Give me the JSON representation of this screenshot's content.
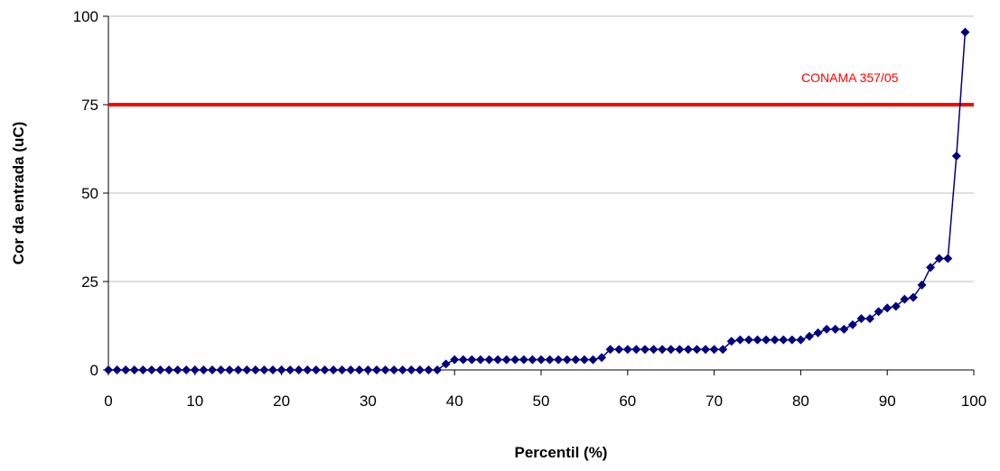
{
  "chart_data": {
    "type": "line",
    "title": "",
    "xlabel": "Percentil (%)",
    "ylabel": "Cor da entrada (uC)",
    "xlim": [
      0,
      100
    ],
    "ylim": [
      0,
      100
    ],
    "x_ticks": [
      "0",
      "10",
      "20",
      "30",
      "40",
      "50",
      "60",
      "70",
      "80",
      "90",
      "100"
    ],
    "y_ticks": [
      "0",
      "25",
      "50",
      "75",
      "100"
    ],
    "grid": "horizontal",
    "series_color": "#000080",
    "series": [
      {
        "x": [
          0,
          1,
          2,
          3,
          4,
          5,
          6,
          7,
          8,
          9,
          10,
          11,
          12,
          13,
          14,
          15,
          16,
          17,
          18,
          19,
          20,
          21,
          22,
          23,
          24,
          25,
          26,
          27,
          28,
          29,
          30,
          31,
          32,
          33,
          34,
          35,
          36,
          37,
          38,
          39,
          40,
          41,
          42,
          43,
          44,
          45,
          46,
          47,
          48,
          49,
          50,
          51,
          52,
          53,
          54,
          55,
          56,
          57,
          58,
          59,
          60,
          61,
          62,
          63,
          64,
          65,
          66,
          67,
          68,
          69,
          70,
          71,
          72,
          73,
          74,
          75,
          76,
          77,
          78,
          79,
          80,
          81,
          82,
          83,
          84,
          85,
          86,
          87,
          88,
          89,
          90,
          91,
          92,
          93,
          94,
          95,
          96,
          97,
          98,
          99
        ],
        "values": [
          0,
          0,
          0,
          0,
          0,
          0,
          0,
          0,
          0,
          0,
          0,
          0,
          0,
          0,
          0,
          0,
          0,
          0,
          0,
          0,
          0,
          0,
          0,
          0,
          0,
          0,
          0,
          0,
          0,
          0,
          0,
          0,
          0,
          0,
          0,
          0,
          0,
          0,
          0,
          1.7,
          2.9,
          2.9,
          2.9,
          2.9,
          2.9,
          2.9,
          2.9,
          2.9,
          2.9,
          2.9,
          2.9,
          2.9,
          2.9,
          2.9,
          2.9,
          2.9,
          2.9,
          3.5,
          5.8,
          5.8,
          5.8,
          5.8,
          5.8,
          5.8,
          5.8,
          5.8,
          5.8,
          5.8,
          5.8,
          5.8,
          5.8,
          5.8,
          8.1,
          8.5,
          8.5,
          8.5,
          8.5,
          8.5,
          8.5,
          8.5,
          8.5,
          9.5,
          10.5,
          11.5,
          11.5,
          11.5,
          12.8,
          14.5,
          14.5,
          16.5,
          17.5,
          18,
          20,
          20.5,
          24,
          29,
          31.5,
          31.5,
          60.5,
          95.5
        ]
      }
    ],
    "reference_line": {
      "y": 75,
      "label": "CONAMA 357/05",
      "color": "#ff0000"
    }
  }
}
